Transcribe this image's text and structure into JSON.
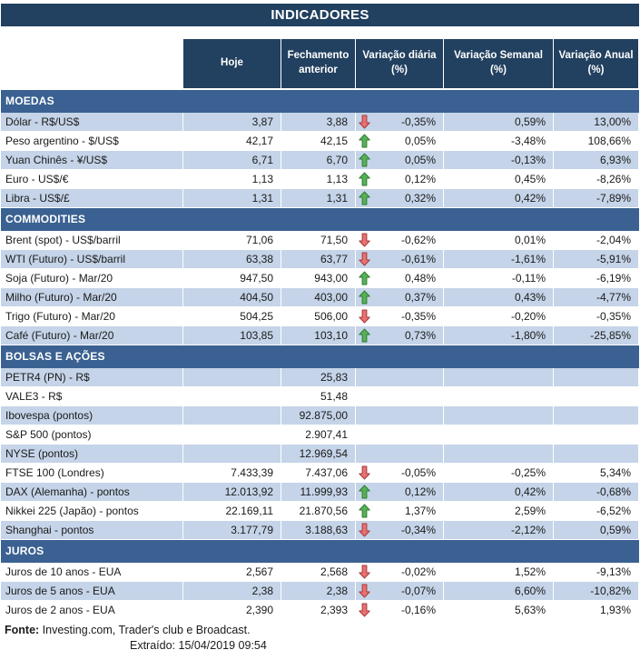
{
  "title": "INDICADORES",
  "columns": [
    "Hoje",
    "Fechamento anterior",
    "Variação diária (%)",
    "Variação Semanal (%)",
    "Variação Anual (%)"
  ],
  "colors": {
    "navy": "#22405F",
    "section_blue": "#3A6191",
    "row_blue": "#C5D4E8",
    "arrow_up_fill": "#58B158",
    "arrow_up_stroke": "#2E7D32",
    "arrow_down_fill": "#E97171",
    "arrow_down_stroke": "#A43B3B"
  },
  "sections": [
    {
      "id": "moedas",
      "name": "MOEDAS",
      "rows": [
        {
          "label": "Dólar - R$/US$",
          "hoje": "3,87",
          "fechamento": "3,88",
          "arrow": "down",
          "diaria": "-0,35%",
          "semanal": "0,59%",
          "anual": "13,00%",
          "shade": true
        },
        {
          "label": "Peso argentino - $/US$",
          "hoje": "42,17",
          "fechamento": "42,15",
          "arrow": "up",
          "diaria": "0,05%",
          "semanal": "-3,48%",
          "anual": "108,66%",
          "shade": false
        },
        {
          "label": "Yuan Chinês - ¥/US$",
          "hoje": "6,71",
          "fechamento": "6,70",
          "arrow": "up",
          "diaria": "0,05%",
          "semanal": "-0,13%",
          "anual": "6,93%",
          "shade": true
        },
        {
          "label": "Euro - US$/€",
          "hoje": "1,13",
          "fechamento": "1,13",
          "arrow": "up",
          "diaria": "0,12%",
          "semanal": "0,45%",
          "anual": "-8,26%",
          "shade": false
        },
        {
          "label": "Libra - US$/£",
          "hoje": "1,31",
          "fechamento": "1,31",
          "arrow": "up",
          "diaria": "0,32%",
          "semanal": "0,42%",
          "anual": "-7,89%",
          "shade": true
        }
      ]
    },
    {
      "id": "commodities",
      "name": "COMMODITIES",
      "rows": [
        {
          "label": "Brent (spot) - US$/barril",
          "hoje": "71,06",
          "fechamento": "71,50",
          "arrow": "down",
          "diaria": "-0,62%",
          "semanal": "0,01%",
          "anual": "-2,04%",
          "shade": false
        },
        {
          "label": "WTI (Futuro) - US$/barril",
          "hoje": "63,38",
          "fechamento": "63,77",
          "arrow": "down",
          "diaria": "-0,61%",
          "semanal": "-1,61%",
          "anual": "-5,91%",
          "shade": true
        },
        {
          "label": "Soja (Futuro) - Mar/20",
          "hoje": "947,50",
          "fechamento": "943,00",
          "arrow": "up",
          "diaria": "0,48%",
          "semanal": "-0,11%",
          "anual": "-6,19%",
          "shade": false
        },
        {
          "label": "Milho (Futuro) - Mar/20",
          "hoje": "404,50",
          "fechamento": "403,00",
          "arrow": "up",
          "diaria": "0,37%",
          "semanal": "0,43%",
          "anual": "-4,77%",
          "shade": true
        },
        {
          "label": "Trigo (Futuro) - Mar/20",
          "hoje": "504,25",
          "fechamento": "506,00",
          "arrow": "down",
          "diaria": "-0,35%",
          "semanal": "-0,20%",
          "anual": "-0,35%",
          "shade": false
        },
        {
          "label": "Café (Futuro) - Mar/20",
          "hoje": "103,85",
          "fechamento": "103,10",
          "arrow": "up",
          "diaria": "0,73%",
          "semanal": "-1,80%",
          "anual": "-25,85%",
          "shade": true
        }
      ]
    },
    {
      "id": "bolsas-e-acoes",
      "name": "BOLSAS E AÇÕES",
      "rows": [
        {
          "label": "PETR4 (PN) - R$",
          "hoje": "",
          "fechamento": "25,83",
          "arrow": null,
          "diaria": "",
          "semanal": "",
          "anual": "",
          "shade": true
        },
        {
          "label": "VALE3 - R$",
          "hoje": "",
          "fechamento": "51,48",
          "arrow": null,
          "diaria": "",
          "semanal": "",
          "anual": "",
          "shade": false
        },
        {
          "label": "Ibovespa (pontos)",
          "hoje": "",
          "fechamento": "92.875,00",
          "arrow": null,
          "diaria": "",
          "semanal": "",
          "anual": "",
          "shade": true
        },
        {
          "label": "S&P 500 (pontos)",
          "hoje": "",
          "fechamento": "2.907,41",
          "arrow": null,
          "diaria": "",
          "semanal": "",
          "anual": "",
          "shade": false
        },
        {
          "label": "NYSE (pontos)",
          "hoje": "",
          "fechamento": "12.969,54",
          "arrow": null,
          "diaria": "",
          "semanal": "",
          "anual": "",
          "shade": true
        },
        {
          "label": "FTSE 100 (Londres)",
          "hoje": "7.433,39",
          "fechamento": "7.437,06",
          "arrow": "down",
          "diaria": "-0,05%",
          "semanal": "-0,25%",
          "anual": "5,34%",
          "shade": false
        },
        {
          "label": "DAX (Alemanha) - pontos",
          "hoje": "12.013,92",
          "fechamento": "11.999,93",
          "arrow": "up",
          "diaria": "0,12%",
          "semanal": "0,42%",
          "anual": "-0,68%",
          "shade": true
        },
        {
          "label": "Nikkei 225 (Japão) - pontos",
          "hoje": "22.169,11",
          "fechamento": "21.870,56",
          "arrow": "up",
          "diaria": "1,37%",
          "semanal": "2,59%",
          "anual": "-6,52%",
          "shade": false
        },
        {
          "label": "Shanghai - pontos",
          "hoje": "3.177,79",
          "fechamento": "3.188,63",
          "arrow": "down",
          "diaria": "-0,34%",
          "semanal": "-2,12%",
          "anual": "0,59%",
          "shade": true
        }
      ]
    },
    {
      "id": "juros",
      "name": "JUROS",
      "rows": [
        {
          "label": "Juros de 10 anos - EUA",
          "hoje": "2,567",
          "fechamento": "2,568",
          "arrow": "down",
          "diaria": "-0,02%",
          "semanal": "1,52%",
          "anual": "-9,13%",
          "shade": false
        },
        {
          "label": "Juros de 5 anos - EUA",
          "hoje": "2,38",
          "fechamento": "2,38",
          "arrow": "down",
          "diaria": "-0,07%",
          "semanal": "6,60%",
          "anual": "-10,82%",
          "shade": true
        },
        {
          "label": "Juros de 2 anos - EUA",
          "hoje": "2,390",
          "fechamento": "2,393",
          "arrow": "down",
          "diaria": "-0,16%",
          "semanal": "5,63%",
          "anual": "1,93%",
          "shade": false
        }
      ]
    }
  ],
  "footer": {
    "fonte_label": "Fonte:",
    "fonte_text": " Investing.com, Trader's club e Broadcast.",
    "extraido_label": "Extraído:",
    "extraido_value": "  15/04/2019 09:54"
  }
}
